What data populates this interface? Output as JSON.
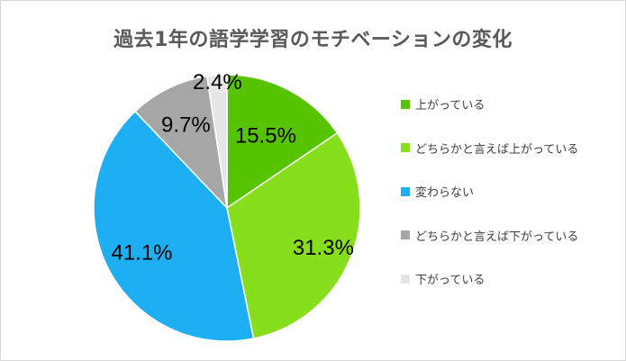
{
  "chart_data": {
    "type": "pie",
    "title": "過去1年の語学学習のモチベーションの変化",
    "start_angle_deg": 0,
    "direction": "clockwise",
    "slices": [
      {
        "label": "上がっている",
        "value": 15.5,
        "display": "15.5%",
        "color": "#56c401"
      },
      {
        "label": "どちらかと言えば上がっている",
        "value": 31.3,
        "display": "31.3%",
        "color": "#87df1c"
      },
      {
        "label": "変わらない",
        "value": 41.1,
        "display": "41.1%",
        "color": "#1eaef2"
      },
      {
        "label": "どちらかと言えば下がっている",
        "value": 9.7,
        "display": "9.7%",
        "color": "#a6a6a6"
      },
      {
        "label": "下がっている",
        "value": 2.4,
        "display": "2.4%",
        "color": "#e6e6e6"
      }
    ],
    "legend_position": "right"
  }
}
